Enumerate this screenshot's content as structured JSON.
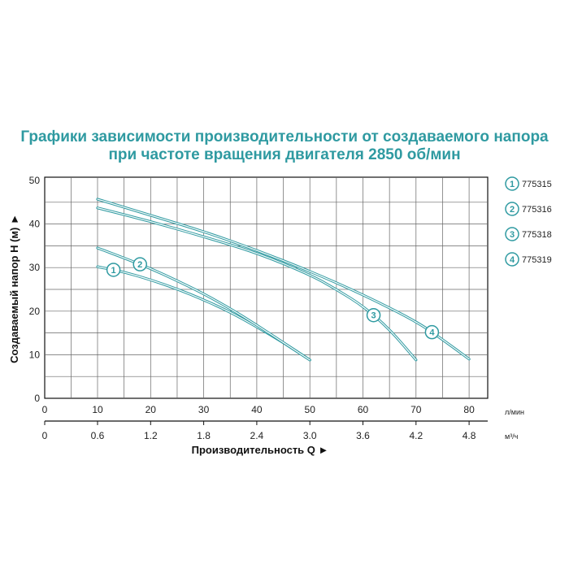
{
  "title_line1": "Графики зависимости производительности от создаваемого напора",
  "title_line2": "при частоте вращения двигателя 2850 об/мин",
  "chart_data": {
    "type": "line",
    "ylabel": "Создаваемый напор H (м) ►",
    "xlabel": "Производительность Q ►",
    "x_unit": "л/мин",
    "x2_unit": "м³/ч",
    "ylim": [
      0,
      50
    ],
    "xlim": [
      0,
      80
    ],
    "y_ticks": [
      0,
      10,
      20,
      30,
      40,
      50
    ],
    "x_ticks": [
      0,
      10,
      20,
      30,
      40,
      50,
      60,
      70,
      80
    ],
    "x2_ticks": [
      "0",
      "0.6",
      "1.2",
      "1.8",
      "2.4",
      "3.0",
      "3.6",
      "4.2",
      "4.8"
    ],
    "grid": true,
    "legend_position": "right",
    "series": [
      {
        "name": "775315",
        "number": "1",
        "x": [
          10,
          15,
          20,
          25,
          30,
          35,
          40,
          45,
          50
        ],
        "y": [
          30.2,
          29.0,
          27.2,
          25.1,
          22.6,
          19.8,
          16.4,
          12.8,
          8.8
        ],
        "marker_at": 13
      },
      {
        "name": "775316",
        "number": "2",
        "x": [
          10,
          15,
          20,
          25,
          30,
          35,
          40,
          45,
          50
        ],
        "y": [
          34.5,
          32.2,
          29.8,
          27.0,
          24.0,
          20.6,
          16.8,
          12.8,
          8.8
        ],
        "marker_at": 18
      },
      {
        "name": "775318",
        "number": "3",
        "x": [
          10,
          20,
          30,
          40,
          50,
          55,
          60,
          65,
          70
        ],
        "y": [
          43.7,
          40.6,
          37.1,
          33.4,
          28.4,
          25.0,
          21.2,
          15.9,
          8.8
        ],
        "marker_at": 62
      },
      {
        "name": "775319",
        "number": "4",
        "x": [
          10,
          20,
          30,
          40,
          50,
          60,
          70,
          75,
          80
        ],
        "y": [
          45.7,
          42.0,
          38.3,
          34.0,
          29.2,
          23.8,
          17.7,
          13.5,
          9.0
        ],
        "marker_at": 73
      }
    ]
  },
  "colors": {
    "curve": "#2f9aa1",
    "title": "#2f9aa1",
    "grid": "#666666",
    "axis": "#111111"
  }
}
